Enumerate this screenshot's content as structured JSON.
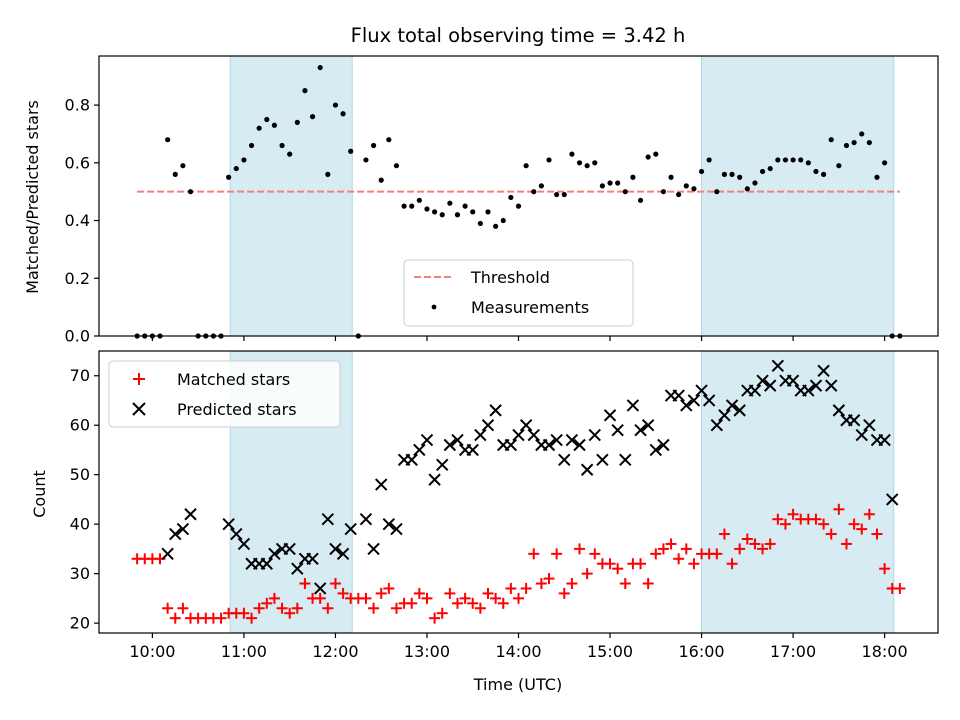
{
  "chart_data": [
    {
      "type": "scatter",
      "title": "Flux total observing time = 3.42 h",
      "xlabel": "",
      "ylabel": "Matched/Predicted stars",
      "xlim": [
        "09:25",
        "18:35"
      ],
      "ylim": [
        0,
        0.97
      ],
      "yticks": [
        "0.0",
        "0.2",
        "0.4",
        "0.6",
        "0.8"
      ],
      "shaded_regions": [
        [
          "10:51",
          "12:11"
        ],
        [
          "16:00",
          "18:06"
        ]
      ],
      "threshold": {
        "name": "Threshold",
        "value": 0.5,
        "from": "09:50",
        "to": "18:10"
      },
      "series": [
        {
          "name": "Measurements",
          "x": [
            "09:50",
            "09:55",
            "10:00",
            "10:05",
            "10:10",
            "10:15",
            "10:20",
            "10:25",
            "10:30",
            "10:35",
            "10:40",
            "10:45",
            "10:50",
            "10:55",
            "11:00",
            "11:05",
            "11:10",
            "11:15",
            "11:20",
            "11:25",
            "11:30",
            "11:35",
            "11:40",
            "11:45",
            "11:50",
            "11:55",
            "12:00",
            "12:05",
            "12:10",
            "12:15",
            "12:20",
            "12:25",
            "12:30",
            "12:35",
            "12:40",
            "12:45",
            "12:50",
            "12:55",
            "13:00",
            "13:05",
            "13:10",
            "13:15",
            "13:20",
            "13:25",
            "13:30",
            "13:35",
            "13:40",
            "13:45",
            "13:50",
            "13:55",
            "14:00",
            "14:05",
            "14:10",
            "14:15",
            "14:20",
            "14:25",
            "14:30",
            "14:35",
            "14:40",
            "14:45",
            "14:50",
            "14:55",
            "15:00",
            "15:05",
            "15:10",
            "15:15",
            "15:20",
            "15:25",
            "15:30",
            "15:35",
            "15:40",
            "15:45",
            "15:50",
            "15:55",
            "16:00",
            "16:05",
            "16:10",
            "16:15",
            "16:20",
            "16:25",
            "16:30",
            "16:35",
            "16:40",
            "16:45",
            "16:50",
            "16:55",
            "17:00",
            "17:05",
            "17:10",
            "17:15",
            "17:20",
            "17:25",
            "17:30",
            "17:35",
            "17:40",
            "17:45",
            "17:50",
            "17:55",
            "18:00",
            "18:05",
            "18:10"
          ],
          "y": [
            0,
            0,
            0,
            0,
            0.68,
            0.56,
            0.59,
            0.5,
            0,
            0,
            0,
            0,
            0.55,
            0.58,
            0.61,
            0.66,
            0.72,
            0.75,
            0.73,
            0.66,
            0.63,
            0.74,
            0.85,
            0.76,
            0.93,
            0.56,
            0.8,
            0.77,
            0.64,
            0,
            0.61,
            0.66,
            0.54,
            0.68,
            0.59,
            0.45,
            0.45,
            0.47,
            0.44,
            0.43,
            0.42,
            0.46,
            0.42,
            0.45,
            0.43,
            0.39,
            0.43,
            0.38,
            0.4,
            0.48,
            0.45,
            0.59,
            0.5,
            0.52,
            0.61,
            0.49,
            0.49,
            0.63,
            0.6,
            0.59,
            0.6,
            0.52,
            0.53,
            0.53,
            0.5,
            0.55,
            0.47,
            0.62,
            0.63,
            0.5,
            0.55,
            0.49,
            0.52,
            0.51,
            0.57,
            0.61,
            0.5,
            0.56,
            0.56,
            0.55,
            0.51,
            0.53,
            0.57,
            0.58,
            0.61,
            0.61,
            0.61,
            0.61,
            0.6,
            0.57,
            0.56,
            0.68,
            0.59,
            0.66,
            0.67,
            0.7,
            0.67,
            0.55,
            0.6,
            0,
            0
          ]
        }
      ],
      "legend": {
        "entries": [
          "Threshold",
          "Measurements"
        ],
        "placement": "lower center"
      }
    },
    {
      "type": "scatter",
      "title": "",
      "xlabel": "Time (UTC)",
      "ylabel": "Count",
      "xlim": [
        "09:25",
        "18:35"
      ],
      "ylim": [
        18,
        75
      ],
      "yticks": [
        "20",
        "30",
        "40",
        "50",
        "60",
        "70"
      ],
      "xticks": [
        "10:00",
        "11:00",
        "12:00",
        "13:00",
        "14:00",
        "15:00",
        "16:00",
        "17:00",
        "18:00"
      ],
      "shaded_regions": [
        [
          "10:51",
          "12:11"
        ],
        [
          "16:00",
          "18:06"
        ]
      ],
      "x": [
        "09:50",
        "09:55",
        "10:00",
        "10:05",
        "10:10",
        "10:15",
        "10:20",
        "10:25",
        "10:30",
        "10:35",
        "10:40",
        "10:45",
        "10:50",
        "10:55",
        "11:00",
        "11:05",
        "11:10",
        "11:15",
        "11:20",
        "11:25",
        "11:30",
        "11:35",
        "11:40",
        "11:45",
        "11:50",
        "11:55",
        "12:00",
        "12:05",
        "12:10",
        "12:15",
        "12:20",
        "12:25",
        "12:30",
        "12:35",
        "12:40",
        "12:45",
        "12:50",
        "12:55",
        "13:00",
        "13:05",
        "13:10",
        "13:15",
        "13:20",
        "13:25",
        "13:30",
        "13:35",
        "13:40",
        "13:45",
        "13:50",
        "13:55",
        "14:00",
        "14:05",
        "14:10",
        "14:15",
        "14:20",
        "14:25",
        "14:30",
        "14:35",
        "14:40",
        "14:45",
        "14:50",
        "14:55",
        "15:00",
        "15:05",
        "15:10",
        "15:15",
        "15:20",
        "15:25",
        "15:30",
        "15:35",
        "15:40",
        "15:45",
        "15:50",
        "15:55",
        "16:00",
        "16:05",
        "16:10",
        "16:15",
        "16:20",
        "16:25",
        "16:30",
        "16:35",
        "16:40",
        "16:45",
        "16:50",
        "16:55",
        "17:00",
        "17:05",
        "17:10",
        "17:15",
        "17:20",
        "17:25",
        "17:30",
        "17:35",
        "17:40",
        "17:45",
        "17:50",
        "17:55",
        "18:00",
        "18:05",
        "18:10"
      ],
      "series": [
        {
          "name": "Matched stars",
          "color": "#ff0000",
          "marker": "plus",
          "y": [
            33,
            33,
            33,
            33,
            23,
            21,
            23,
            21,
            21,
            21,
            21,
            21,
            22,
            22,
            22,
            21,
            23,
            24,
            25,
            23,
            22,
            23,
            28,
            25,
            25,
            23,
            28,
            26,
            25,
            25,
            25,
            23,
            26,
            27,
            23,
            24,
            24,
            26,
            25,
            21,
            22,
            26,
            24,
            25,
            24,
            23,
            26,
            25,
            24,
            27,
            25,
            27,
            34,
            28,
            29,
            34,
            26,
            28,
            35,
            30,
            34,
            32,
            32,
            31,
            28,
            32,
            32,
            28,
            34,
            35,
            36,
            33,
            35,
            32,
            34,
            34,
            34,
            38,
            32,
            35,
            37,
            36,
            35,
            36,
            41,
            40,
            42,
            41,
            41,
            41,
            40,
            38,
            43,
            36,
            40,
            39,
            42,
            38,
            31,
            27,
            27
          ]
        },
        {
          "name": "Predicted stars",
          "color": "#000000",
          "marker": "x",
          "y": [
            null,
            null,
            null,
            null,
            34,
            38,
            39,
            42,
            null,
            null,
            null,
            null,
            40,
            38,
            36,
            32,
            32,
            32,
            34,
            35,
            35,
            31,
            33,
            33,
            27,
            41,
            35,
            34,
            39,
            null,
            41,
            35,
            48,
            40,
            39,
            53,
            53,
            55,
            57,
            49,
            52,
            56,
            57,
            55,
            55,
            58,
            60,
            63,
            56,
            56,
            58,
            60,
            58,
            56,
            56,
            57,
            53,
            57,
            56,
            51,
            58,
            53,
            62,
            59,
            53,
            64,
            59,
            60,
            55,
            56,
            66,
            66,
            64,
            65,
            67,
            65,
            60,
            62,
            64,
            63,
            67,
            67,
            69,
            68,
            72,
            69,
            69,
            67,
            67,
            68,
            71,
            68,
            63,
            61,
            61,
            58,
            60,
            57,
            57,
            45,
            null
          ]
        }
      ],
      "legend": {
        "entries": [
          "Matched stars",
          "Predicted stars"
        ],
        "placement": "upper left"
      }
    }
  ]
}
